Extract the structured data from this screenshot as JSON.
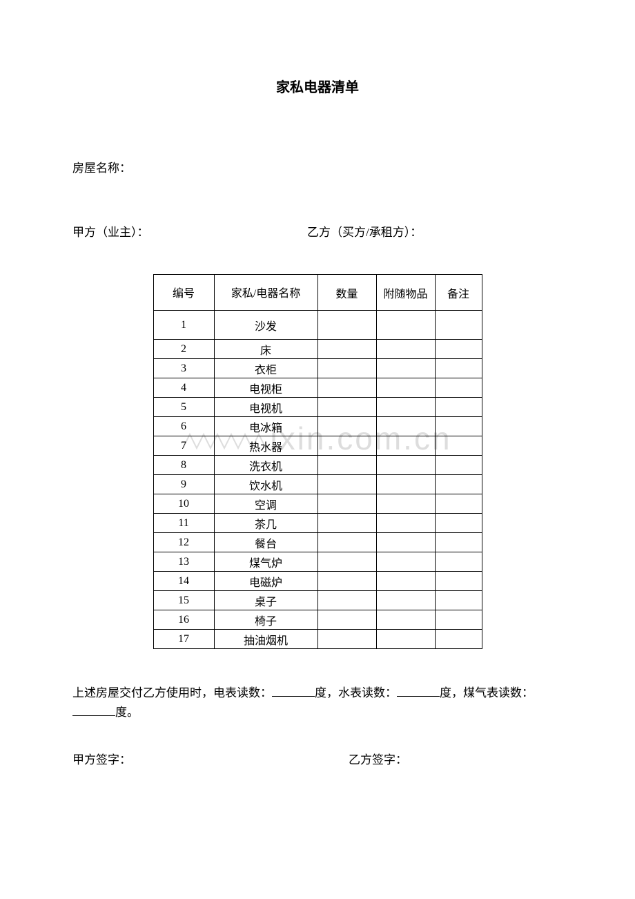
{
  "document": {
    "title": "家私电器清单",
    "houseNameLabel": "房屋名称：",
    "partyA_label": "甲方（业主）：",
    "partyB_label": "乙方（买方/承租方）：",
    "table": {
      "columns": {
        "id": "编号",
        "name": "家私/电器名称",
        "qty": "数量",
        "accessory": "附随物品",
        "note": "备注"
      },
      "rows": [
        {
          "id": "1",
          "name": "沙发",
          "qty": "",
          "accessory": "",
          "note": ""
        },
        {
          "id": "2",
          "name": "床",
          "qty": "",
          "accessory": "",
          "note": ""
        },
        {
          "id": "3",
          "name": "衣柜",
          "qty": "",
          "accessory": "",
          "note": ""
        },
        {
          "id": "4",
          "name": "电视柜",
          "qty": "",
          "accessory": "",
          "note": ""
        },
        {
          "id": "5",
          "name": "电视机",
          "qty": "",
          "accessory": "",
          "note": ""
        },
        {
          "id": "6",
          "name": "电冰箱",
          "qty": "",
          "accessory": "",
          "note": ""
        },
        {
          "id": "7",
          "name": "热水器",
          "qty": "",
          "accessory": "",
          "note": ""
        },
        {
          "id": "8",
          "name": "洗衣机",
          "qty": "",
          "accessory": "",
          "note": ""
        },
        {
          "id": "9",
          "name": "饮水机",
          "qty": "",
          "accessory": "",
          "note": ""
        },
        {
          "id": "10",
          "name": "空调",
          "qty": "",
          "accessory": "",
          "note": ""
        },
        {
          "id": "11",
          "name": "茶几",
          "qty": "",
          "accessory": "",
          "note": ""
        },
        {
          "id": "12",
          "name": "餐台",
          "qty": "",
          "accessory": "",
          "note": ""
        },
        {
          "id": "13",
          "name": "煤气炉",
          "qty": "",
          "accessory": "",
          "note": ""
        },
        {
          "id": "14",
          "name": "电磁炉",
          "qty": "",
          "accessory": "",
          "note": ""
        },
        {
          "id": "15",
          "name": "桌子",
          "qty": "",
          "accessory": "",
          "note": ""
        },
        {
          "id": "16",
          "name": "椅子",
          "qty": "",
          "accessory": "",
          "note": ""
        },
        {
          "id": "17",
          "name": "抽油烟机",
          "qty": "",
          "accessory": "",
          "note": ""
        }
      ]
    },
    "footer": {
      "prefix": "上述房屋交付乙方使用时，电表读数：",
      "elecSuffix": "度，水表读数：",
      "waterSuffix": "度，煤气表读数：",
      "gasSuffix": "度。"
    },
    "signA": "甲方签字：",
    "signB": "乙方签字：",
    "watermark": "ixin.com.cn"
  },
  "style": {
    "page_bg": "#ffffff",
    "text_color": "#000000",
    "border_color": "#000000",
    "watermark_color": "#dddddd",
    "title_fontsize": 20,
    "body_fontsize": 17,
    "table_fontsize": 16
  }
}
